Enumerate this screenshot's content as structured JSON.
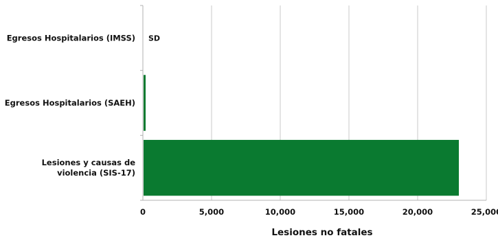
{
  "chart_data": {
    "type": "bar",
    "orientation": "horizontal",
    "categories": [
      "Egresos Hospitalarios (IMSS)",
      "Egresos Hospitalarios (SAEH)",
      "Lesiones y causas de violencia (SIS-17)"
    ],
    "category_lines": [
      [
        "Egresos Hospitalarios (IMSS)"
      ],
      [
        "Egresos Hospitalarios (SAEH)"
      ],
      [
        "Lesiones y causas de",
        "violencia (SIS-17)"
      ]
    ],
    "values": [
      null,
      200,
      23000
    ],
    "data_labels": [
      "SD",
      "",
      ""
    ],
    "xlabel": "Lesiones no fatales",
    "ylabel": "",
    "xlim": [
      0,
      25000
    ],
    "x_ticks": [
      0,
      5000,
      10000,
      15000,
      20000,
      25000
    ],
    "x_tick_labels": [
      "0",
      "5,000",
      "10,000",
      "15,000",
      "20,000",
      "25,000"
    ],
    "grid": "vertical",
    "legend": "none",
    "colors": {
      "bar": "#0a7a30",
      "grid": "#c8c8c8",
      "axis": "#b0b0b0"
    }
  }
}
